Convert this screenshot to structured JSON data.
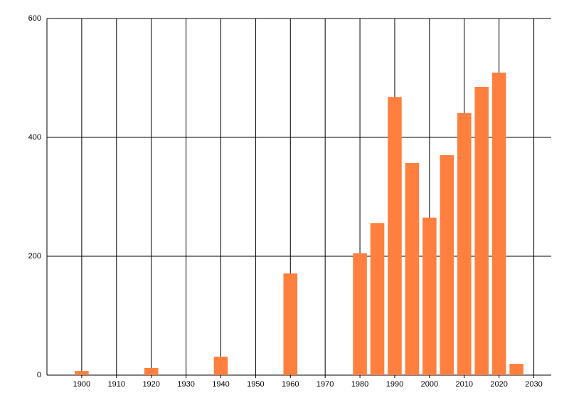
{
  "chart_data": {
    "type": "bar",
    "x": [
      1900,
      1920,
      1940,
      1960,
      1980,
      1985,
      1990,
      1995,
      2000,
      2005,
      2010,
      2015,
      2020,
      2025
    ],
    "values": [
      7,
      12,
      31,
      171,
      205,
      256,
      468,
      357,
      265,
      370,
      441,
      485,
      509,
      19
    ],
    "color": "#ff7f3f",
    "xlim": [
      1890,
      2035
    ],
    "ylim": [
      0,
      600
    ],
    "xticks": [
      1900,
      1910,
      1920,
      1930,
      1940,
      1950,
      1960,
      1970,
      1980,
      1990,
      2000,
      2010,
      2020,
      2030
    ],
    "yticks": [
      0,
      200,
      400,
      600
    ],
    "grid": true
  }
}
